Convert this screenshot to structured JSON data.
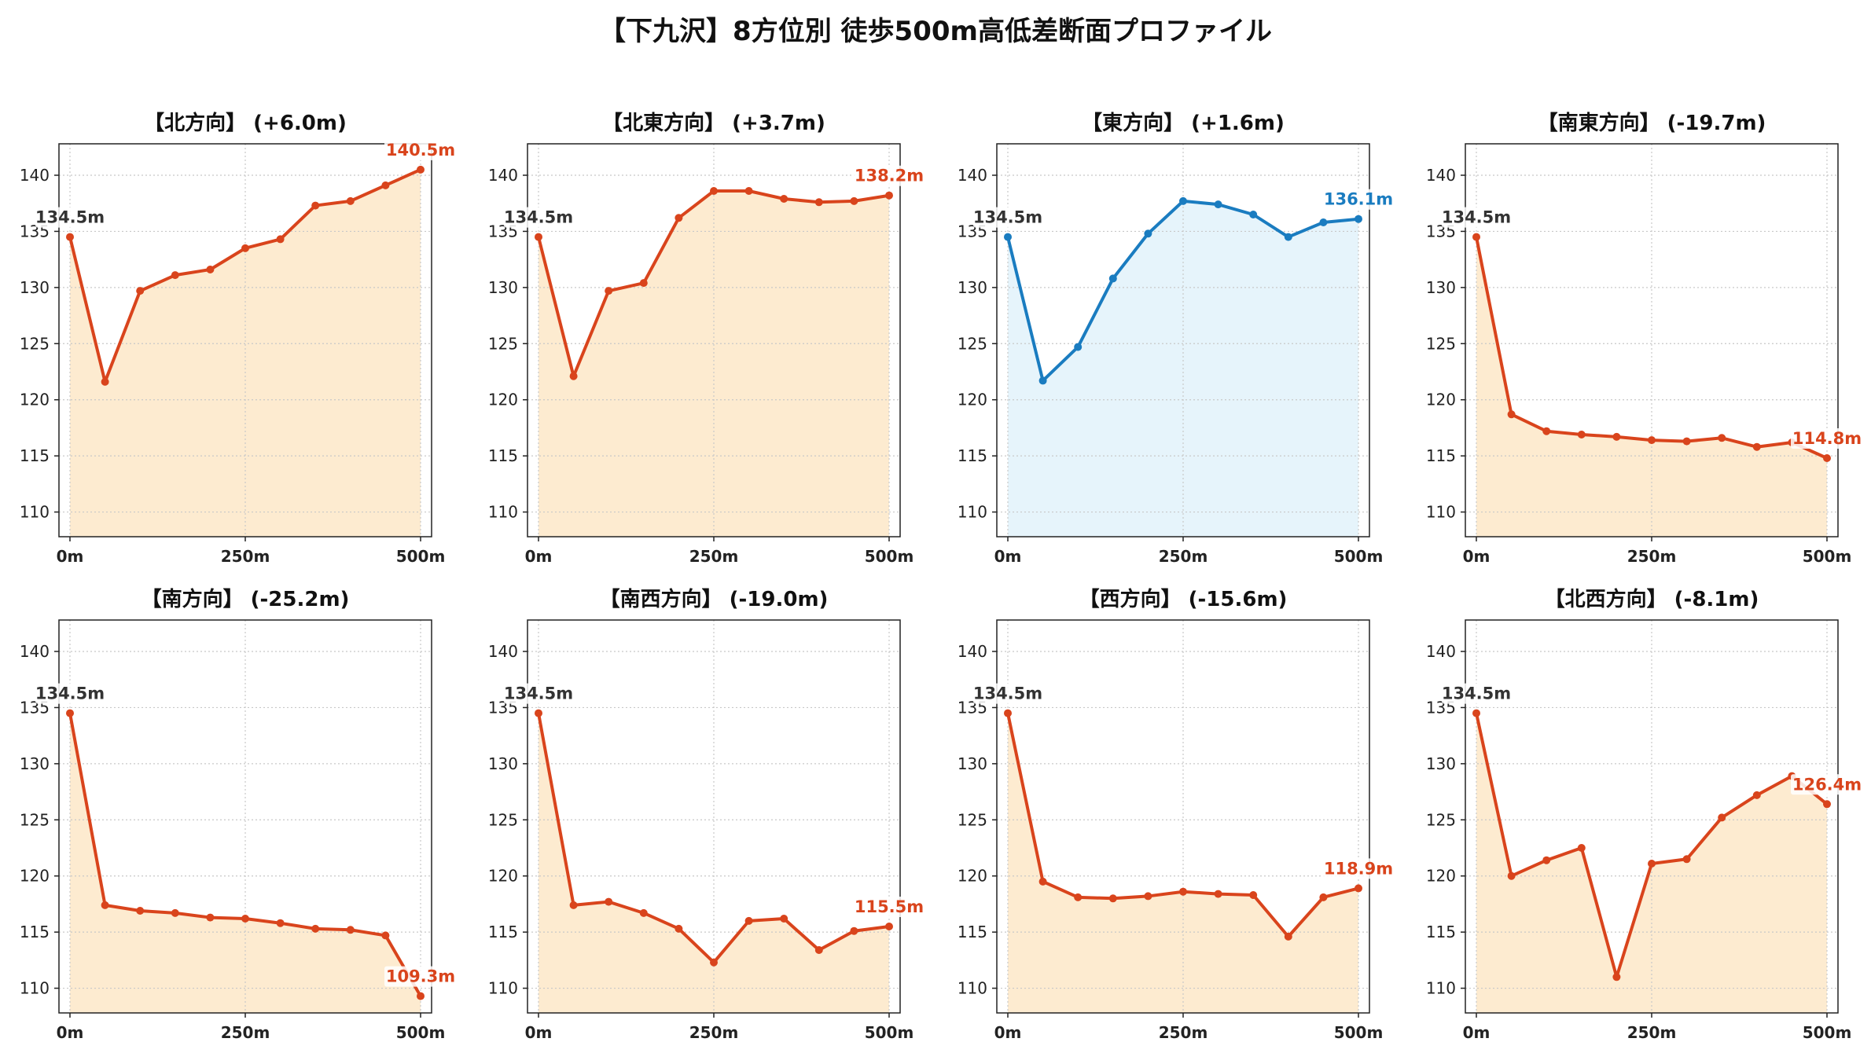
{
  "title": "【下九沢】8方位別 徒歩500m高低差断面プロファイル",
  "colors": {
    "up_line": "#d9441c",
    "up_fill": "#fdebd0",
    "blue_line": "#1a7cc0",
    "blue_fill": "#e6f4fb",
    "start_label": "#333333",
    "grid": "#c8c8c8"
  },
  "chart_data": [
    {
      "type": "area",
      "title": "【北方向】 (+6.0m)",
      "color": "orange",
      "x": [
        0,
        50,
        100,
        150,
        200,
        250,
        300,
        350,
        400,
        450,
        500
      ],
      "y": [
        134.5,
        121.6,
        129.7,
        131.1,
        131.6,
        133.5,
        134.3,
        137.3,
        137.7,
        139.1,
        140.5
      ],
      "start_label": "134.5m",
      "end_label": "140.5m",
      "xticks": [
        "0m",
        "250m",
        "500m"
      ],
      "yticks": [
        110,
        115,
        120,
        125,
        130,
        135,
        140
      ],
      "ylim": [
        107.8,
        142.8
      ],
      "grid": true
    },
    {
      "type": "area",
      "title": "【北東方向】 (+3.7m)",
      "color": "orange",
      "x": [
        0,
        50,
        100,
        150,
        200,
        250,
        300,
        350,
        400,
        450,
        500
      ],
      "y": [
        134.5,
        122.1,
        129.7,
        130.4,
        136.2,
        138.6,
        138.6,
        137.9,
        137.6,
        137.7,
        138.2
      ],
      "start_label": "134.5m",
      "end_label": "138.2m",
      "xticks": [
        "0m",
        "250m",
        "500m"
      ],
      "yticks": [
        110,
        115,
        120,
        125,
        130,
        135,
        140
      ],
      "ylim": [
        107.8,
        142.8
      ],
      "grid": true
    },
    {
      "type": "area",
      "title": "【東方向】 (+1.6m)",
      "color": "blue",
      "x": [
        0,
        50,
        100,
        150,
        200,
        250,
        300,
        350,
        400,
        450,
        500
      ],
      "y": [
        134.5,
        121.7,
        124.7,
        130.8,
        134.8,
        137.7,
        137.4,
        136.5,
        134.5,
        135.8,
        136.1
      ],
      "start_label": "134.5m",
      "end_label": "136.1m",
      "xticks": [
        "0m",
        "250m",
        "500m"
      ],
      "yticks": [
        110,
        115,
        120,
        125,
        130,
        135,
        140
      ],
      "ylim": [
        107.8,
        142.8
      ],
      "grid": true
    },
    {
      "type": "area",
      "title": "【南東方向】 (-19.7m)",
      "color": "orange",
      "x": [
        0,
        50,
        100,
        150,
        200,
        250,
        300,
        350,
        400,
        450,
        500
      ],
      "y": [
        134.5,
        118.7,
        117.2,
        116.9,
        116.7,
        116.4,
        116.3,
        116.6,
        115.8,
        116.2,
        114.8
      ],
      "start_label": "134.5m",
      "end_label": "114.8m",
      "xticks": [
        "0m",
        "250m",
        "500m"
      ],
      "yticks": [
        110,
        115,
        120,
        125,
        130,
        135,
        140
      ],
      "ylim": [
        107.8,
        142.8
      ],
      "grid": true
    },
    {
      "type": "area",
      "title": "【南方向】 (-25.2m)",
      "color": "orange",
      "x": [
        0,
        50,
        100,
        150,
        200,
        250,
        300,
        350,
        400,
        450,
        500
      ],
      "y": [
        134.5,
        117.4,
        116.9,
        116.7,
        116.3,
        116.2,
        115.8,
        115.3,
        115.2,
        114.7,
        109.3
      ],
      "start_label": "134.5m",
      "end_label": "109.3m",
      "xticks": [
        "0m",
        "250m",
        "500m"
      ],
      "yticks": [
        110,
        115,
        120,
        125,
        130,
        135,
        140
      ],
      "ylim": [
        107.8,
        142.8
      ],
      "grid": true
    },
    {
      "type": "area",
      "title": "【南西方向】 (-19.0m)",
      "color": "orange",
      "x": [
        0,
        50,
        100,
        150,
        200,
        250,
        300,
        350,
        400,
        450,
        500
      ],
      "y": [
        134.5,
        117.4,
        117.7,
        116.7,
        115.3,
        112.3,
        116.0,
        116.2,
        113.4,
        115.1,
        115.5
      ],
      "start_label": "134.5m",
      "end_label": "115.5m",
      "xticks": [
        "0m",
        "250m",
        "500m"
      ],
      "yticks": [
        110,
        115,
        120,
        125,
        130,
        135,
        140
      ],
      "ylim": [
        107.8,
        142.8
      ],
      "grid": true
    },
    {
      "type": "area",
      "title": "【西方向】 (-15.6m)",
      "color": "orange",
      "x": [
        0,
        50,
        100,
        150,
        200,
        250,
        300,
        350,
        400,
        450,
        500
      ],
      "y": [
        134.5,
        119.5,
        118.1,
        118.0,
        118.2,
        118.6,
        118.4,
        118.3,
        114.6,
        118.1,
        118.9
      ],
      "start_label": "134.5m",
      "end_label": "118.9m",
      "xticks": [
        "0m",
        "250m",
        "500m"
      ],
      "yticks": [
        110,
        115,
        120,
        125,
        130,
        135,
        140
      ],
      "ylim": [
        107.8,
        142.8
      ],
      "grid": true
    },
    {
      "type": "area",
      "title": "【北西方向】 (-8.1m)",
      "color": "orange",
      "x": [
        0,
        50,
        100,
        150,
        200,
        250,
        300,
        350,
        400,
        450,
        500
      ],
      "y": [
        134.5,
        120.0,
        121.4,
        122.5,
        111.0,
        121.1,
        121.5,
        125.2,
        127.2,
        128.9,
        126.4
      ],
      "start_label": "134.5m",
      "end_label": "126.4m",
      "xticks": [
        "0m",
        "250m",
        "500m"
      ],
      "yticks": [
        110,
        115,
        120,
        125,
        130,
        135,
        140
      ],
      "ylim": [
        107.8,
        142.8
      ],
      "grid": true
    }
  ]
}
